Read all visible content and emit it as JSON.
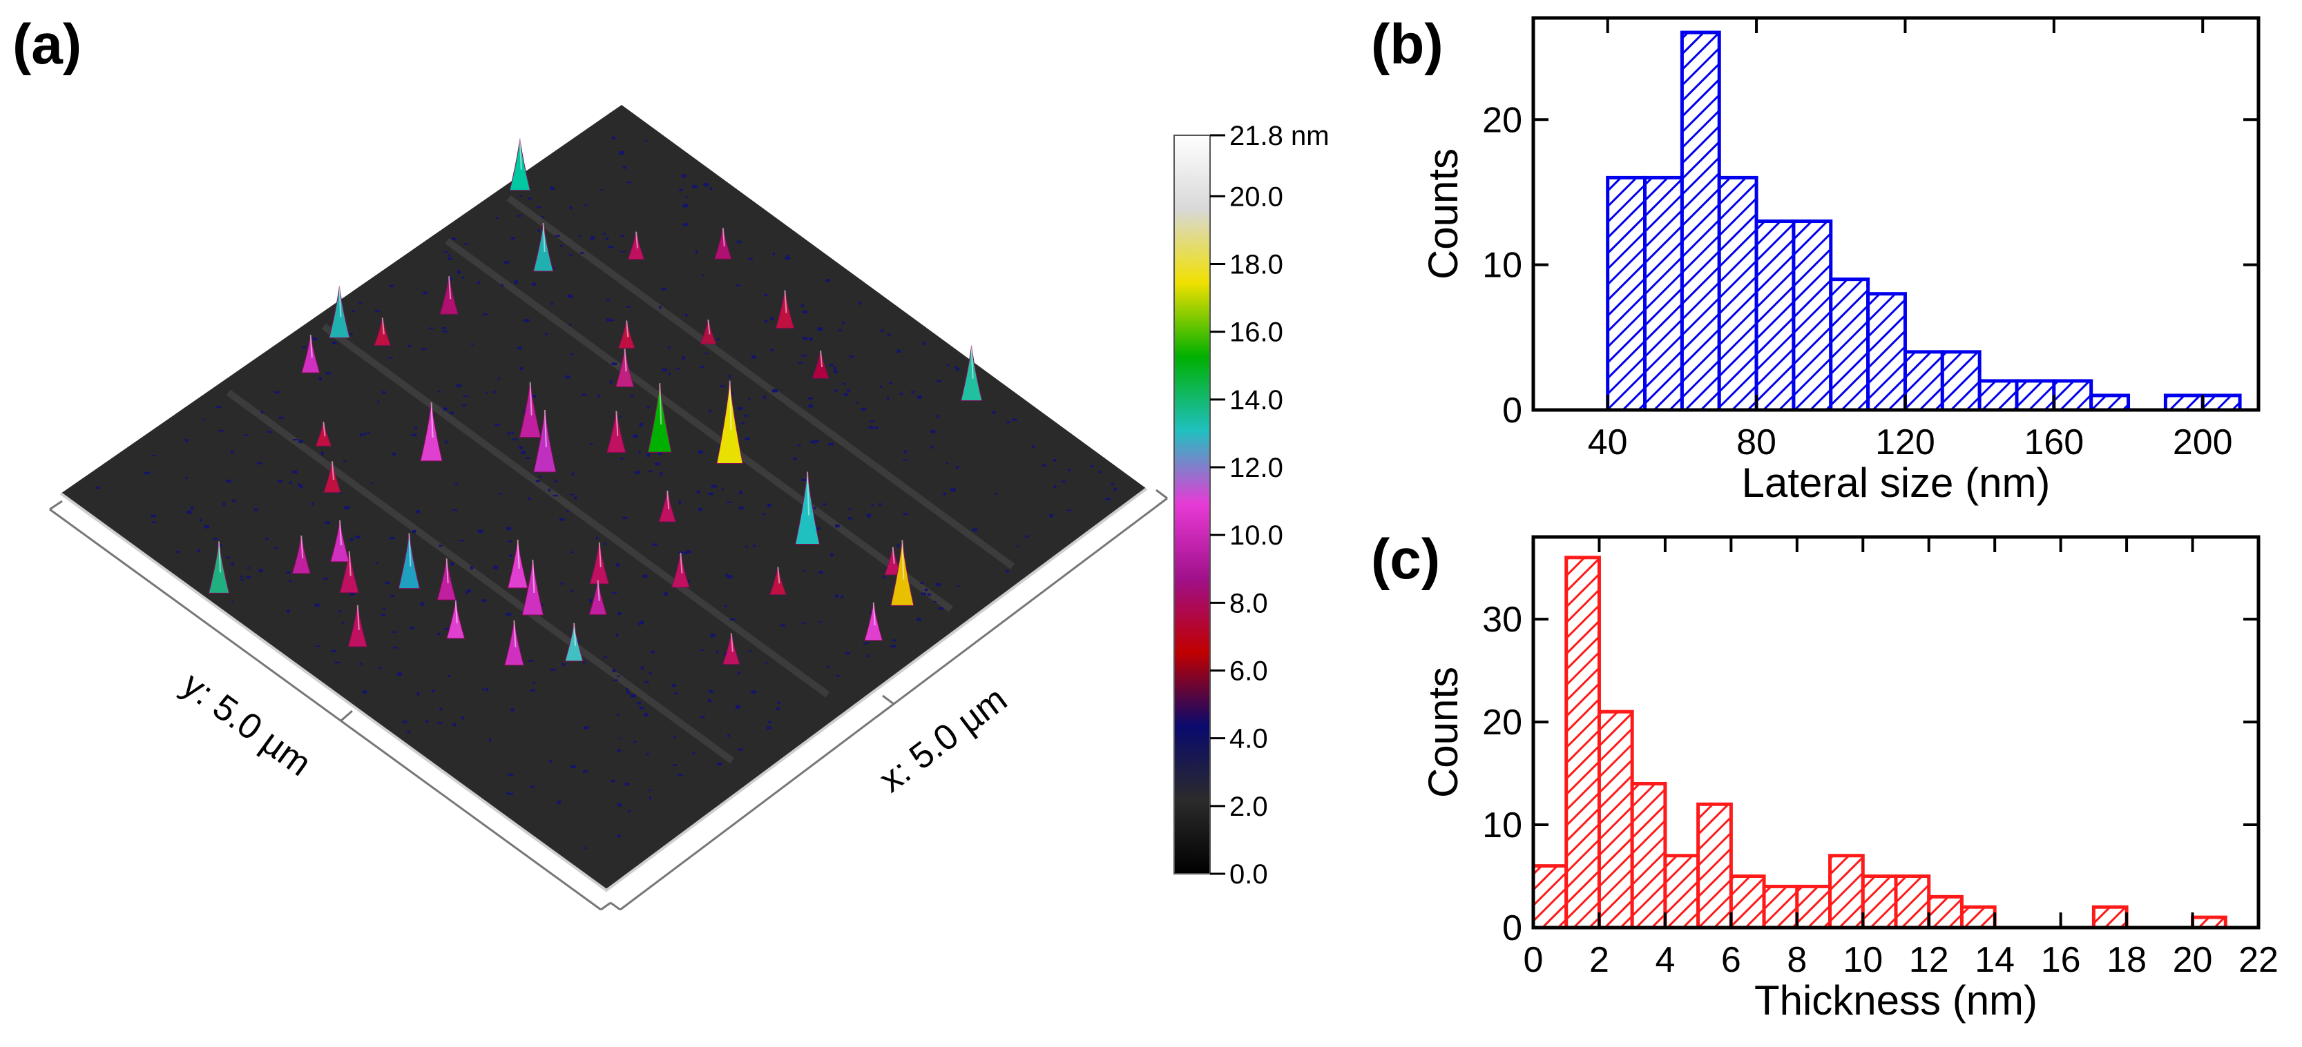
{
  "figure": {
    "panel_a": {
      "label": "(a)",
      "x_axis_label": "x: 5.0 µm",
      "y_axis_label": "y: 5.0 µm",
      "colorbar": {
        "ticks": [
          "21.8 nm",
          "20.0",
          "18.0",
          "16.0",
          "14.0",
          "12.0",
          "10.0",
          "8.0",
          "6.0",
          "4.0",
          "2.0",
          "0.0"
        ],
        "range": [
          0,
          21.8
        ],
        "colors": [
          "#000000",
          "#2b2b2b",
          "#0a0a6e",
          "#c00000",
          "#a0108a",
          "#e83ad6",
          "#20c0c0",
          "#00b000",
          "#f0e000",
          "#d8d8d8",
          "#ffffff"
        ]
      },
      "surface_color": "#2a2a2a"
    },
    "panel_b": {
      "label": "(b)"
    },
    "panel_c": {
      "label": "(c)"
    }
  },
  "chart_data": [
    {
      "type": "bar",
      "panel": "(b)",
      "title": "",
      "xlabel": "Lateral size (nm)",
      "ylabel": "Counts",
      "bin_width": 10,
      "bin_starts": [
        40,
        50,
        60,
        70,
        80,
        90,
        100,
        110,
        120,
        130,
        140,
        150,
        160,
        170,
        180,
        190,
        200
      ],
      "values": [
        16,
        16,
        26,
        16,
        13,
        13,
        9,
        8,
        4,
        4,
        2,
        2,
        2,
        1,
        0,
        1,
        1
      ],
      "xlim": [
        20,
        215
      ],
      "ylim": [
        0,
        27
      ],
      "xticks": [
        40,
        80,
        120,
        160,
        200
      ],
      "yticks": [
        0,
        10,
        20
      ],
      "color": "#0000ee",
      "hatch": "diagonal"
    },
    {
      "type": "bar",
      "panel": "(c)",
      "title": "",
      "xlabel": "Thickness (nm)",
      "ylabel": "Counts",
      "bin_width": 1,
      "bin_starts": [
        0,
        1,
        2,
        3,
        4,
        5,
        6,
        7,
        8,
        9,
        10,
        11,
        12,
        13,
        14,
        15,
        16,
        17,
        18,
        19,
        20
      ],
      "values": [
        6,
        36,
        21,
        14,
        7,
        12,
        5,
        4,
        4,
        7,
        5,
        5,
        3,
        2,
        0,
        0,
        0,
        2,
        0,
        0,
        1
      ],
      "xlim": [
        0,
        22
      ],
      "ylim": [
        0,
        38
      ],
      "xticks": [
        0,
        2,
        4,
        6,
        8,
        10,
        12,
        14,
        16,
        18,
        20,
        22
      ],
      "yticks": [
        0,
        10,
        20,
        30
      ],
      "color": "#ff1a1a",
      "hatch": "diagonal"
    }
  ]
}
